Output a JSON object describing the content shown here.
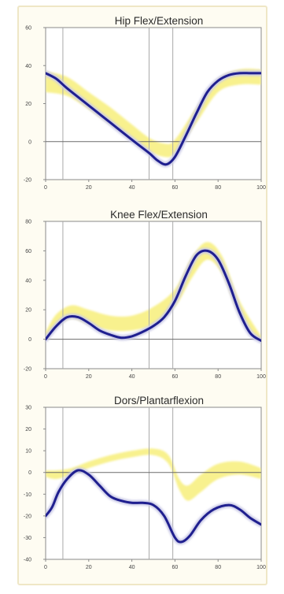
{
  "chart_data": [
    {
      "type": "line",
      "title": "Hip Flex/Extension",
      "ylim": [
        -20,
        60
      ],
      "xlim": [
        0,
        100
      ],
      "yticks": [
        "-20",
        "0",
        "20",
        "40",
        "60"
      ],
      "xticks": [
        "0",
        "20",
        "40",
        "60",
        "80",
        "100"
      ],
      "vlines": [
        8,
        48,
        59
      ],
      "zero_line": 0,
      "colors": {
        "subject": "#1f1f8f",
        "band": "#f7ef7a",
        "band_shadow": "#c9c9e6"
      },
      "band": {
        "x": [
          0,
          10,
          20,
          30,
          40,
          48,
          55,
          60,
          70,
          80,
          90,
          100
        ],
        "upper": [
          37,
          34,
          26,
          18,
          9,
          2,
          -1,
          1,
          18,
          33,
          38,
          38
        ],
        "lower": [
          26,
          24,
          17,
          9,
          2,
          -5,
          -8,
          -6,
          10,
          26,
          30,
          30
        ]
      },
      "series": [
        {
          "x": [
            0,
            5,
            10,
            20,
            30,
            40,
            48,
            52,
            56,
            60,
            65,
            70,
            75,
            80,
            85,
            90,
            95,
            100
          ],
          "values": [
            36,
            33,
            28,
            19,
            10,
            1,
            -6,
            -10,
            -12,
            -8,
            3,
            15,
            26,
            32,
            35,
            36,
            36,
            36
          ]
        }
      ]
    },
    {
      "type": "line",
      "title": "Knee Flex/Extension",
      "ylim": [
        -20,
        80
      ],
      "xlim": [
        0,
        100
      ],
      "yticks": [
        "-20",
        "0",
        "20",
        "40",
        "60",
        "80"
      ],
      "xticks": [
        "0",
        "20",
        "40",
        "60",
        "80",
        "100"
      ],
      "vlines": [
        8,
        48,
        59
      ],
      "zero_line": 0,
      "colors": {
        "subject": "#1f1f8f",
        "band": "#f7ef7a",
        "band_shadow": "#c9c9e6"
      },
      "band": {
        "x": [
          0,
          5,
          12,
          20,
          30,
          40,
          50,
          60,
          68,
          75,
          82,
          90,
          100
        ],
        "upper": [
          5,
          17,
          23,
          20,
          16,
          16,
          22,
          34,
          56,
          66,
          56,
          26,
          2
        ],
        "lower": [
          -1,
          8,
          14,
          10,
          6,
          6,
          10,
          22,
          42,
          54,
          44,
          16,
          -2
        ]
      },
      "series": [
        {
          "x": [
            0,
            5,
            10,
            15,
            20,
            25,
            30,
            35,
            40,
            45,
            50,
            55,
            60,
            65,
            70,
            75,
            80,
            85,
            90,
            95,
            100
          ],
          "values": [
            0,
            9,
            15,
            15,
            11,
            6,
            3,
            1,
            2,
            5,
            9,
            15,
            26,
            43,
            57,
            60,
            54,
            38,
            18,
            4,
            -1
          ]
        }
      ]
    },
    {
      "type": "line",
      "title": "Dors/Plantarflexion",
      "ylim": [
        -40,
        30
      ],
      "xlim": [
        0,
        100
      ],
      "yticks": [
        "-40",
        "-30",
        "-20",
        "-10",
        "0",
        "10",
        "20",
        "30"
      ],
      "xticks": [
        "0",
        "20",
        "40",
        "60",
        "80",
        "100"
      ],
      "vlines": [
        8,
        48,
        59
      ],
      "zero_line": 0,
      "colors": {
        "subject": "#1f1f8f",
        "band": "#f7ef7a",
        "band_shadow": "#c9c9e6"
      },
      "band": {
        "x": [
          0,
          5,
          12,
          20,
          30,
          40,
          50,
          57,
          62,
          66,
          72,
          80,
          90,
          100
        ],
        "upper": [
          1,
          1,
          2,
          5,
          8,
          10,
          11,
          8,
          -3,
          -6,
          -1,
          4,
          5,
          2
        ],
        "lower": [
          -2,
          -3,
          -1,
          2,
          5,
          7,
          8,
          4,
          -8,
          -13,
          -9,
          -3,
          -1,
          -3
        ]
      },
      "series": [
        {
          "x": [
            0,
            3,
            6,
            10,
            15,
            20,
            25,
            30,
            35,
            40,
            45,
            50,
            55,
            60,
            63,
            67,
            72,
            78,
            85,
            90,
            95,
            100
          ],
          "values": [
            -20,
            -16,
            -9,
            -3,
            1,
            -1,
            -6,
            -11,
            -13,
            -14,
            -14,
            -15,
            -20,
            -30,
            -32,
            -29,
            -22,
            -17,
            -15,
            -17,
            -21,
            -24
          ]
        }
      ]
    }
  ]
}
